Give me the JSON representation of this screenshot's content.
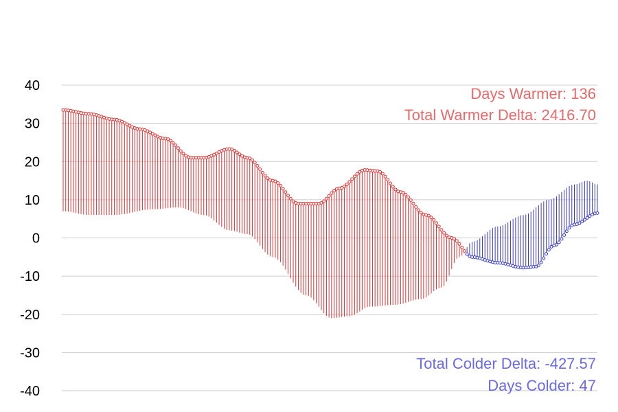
{
  "chart_data": {
    "type": "scatter",
    "ylim": [
      -40,
      40
    ],
    "yticks": [
      40,
      30,
      20,
      10,
      0,
      -10,
      -20,
      -30,
      -40
    ],
    "grid": true,
    "colors": {
      "warmer": "#e03030",
      "colder": "#3a3ad0",
      "annot_warmer": "#e86a6a",
      "annot_colder": "#6a6ae8",
      "grid": "#cccccc"
    },
    "annotations": {
      "days_warmer": "Days Warmer: 136",
      "total_warmer_delta": "Total Warmer Delta: 2416.70",
      "total_colder_delta": "Total Colder Delta: -427.57",
      "days_colder": "Days Colder: 47"
    },
    "series": [
      {
        "role": "observed",
        "keypoints": [
          {
            "day": 0,
            "value": 33.5
          },
          {
            "day": 10,
            "value": 32.5
          },
          {
            "day": 20,
            "value": 31
          },
          {
            "day": 30,
            "value": 28.5
          },
          {
            "day": 40,
            "value": 26
          },
          {
            "day": 50,
            "value": 21
          },
          {
            "day": 55,
            "value": 21
          },
          {
            "day": 65,
            "value": 23.3
          },
          {
            "day": 72,
            "value": 21
          },
          {
            "day": 82,
            "value": 15
          },
          {
            "day": 92,
            "value": 9
          },
          {
            "day": 100,
            "value": 9
          },
          {
            "day": 108,
            "value": 13
          },
          {
            "day": 118,
            "value": 17.8
          },
          {
            "day": 123,
            "value": 17.5
          },
          {
            "day": 132,
            "value": 12
          },
          {
            "day": 142,
            "value": 6
          },
          {
            "day": 152,
            "value": 0
          },
          {
            "day": 160,
            "value": -5
          },
          {
            "day": 170,
            "value": -6.5
          },
          {
            "day": 180,
            "value": -7.8
          },
          {
            "day": 185,
            "value": -7.5
          },
          {
            "day": 192,
            "value": -2
          },
          {
            "day": 200,
            "value": 3.5
          },
          {
            "day": 209,
            "value": 6.5
          }
        ]
      },
      {
        "role": "reference",
        "keypoints": [
          {
            "day": 0,
            "value": 7
          },
          {
            "day": 10,
            "value": 6
          },
          {
            "day": 20,
            "value": 6
          },
          {
            "day": 35,
            "value": 7.5
          },
          {
            "day": 45,
            "value": 8
          },
          {
            "day": 55,
            "value": 6
          },
          {
            "day": 65,
            "value": 2
          },
          {
            "day": 72,
            "value": 1
          },
          {
            "day": 82,
            "value": -5
          },
          {
            "day": 95,
            "value": -15
          },
          {
            "day": 105,
            "value": -21
          },
          {
            "day": 112,
            "value": -20.5
          },
          {
            "day": 120,
            "value": -18
          },
          {
            "day": 130,
            "value": -17.5
          },
          {
            "day": 140,
            "value": -16
          },
          {
            "day": 148,
            "value": -13
          },
          {
            "day": 155,
            "value": -5
          },
          {
            "day": 160,
            "value": -1
          },
          {
            "day": 170,
            "value": 3
          },
          {
            "day": 180,
            "value": 6
          },
          {
            "day": 190,
            "value": 10
          },
          {
            "day": 200,
            "value": 14
          },
          {
            "day": 205,
            "value": 15
          },
          {
            "day": 209,
            "value": 14
          }
        ]
      }
    ],
    "days": 210
  }
}
